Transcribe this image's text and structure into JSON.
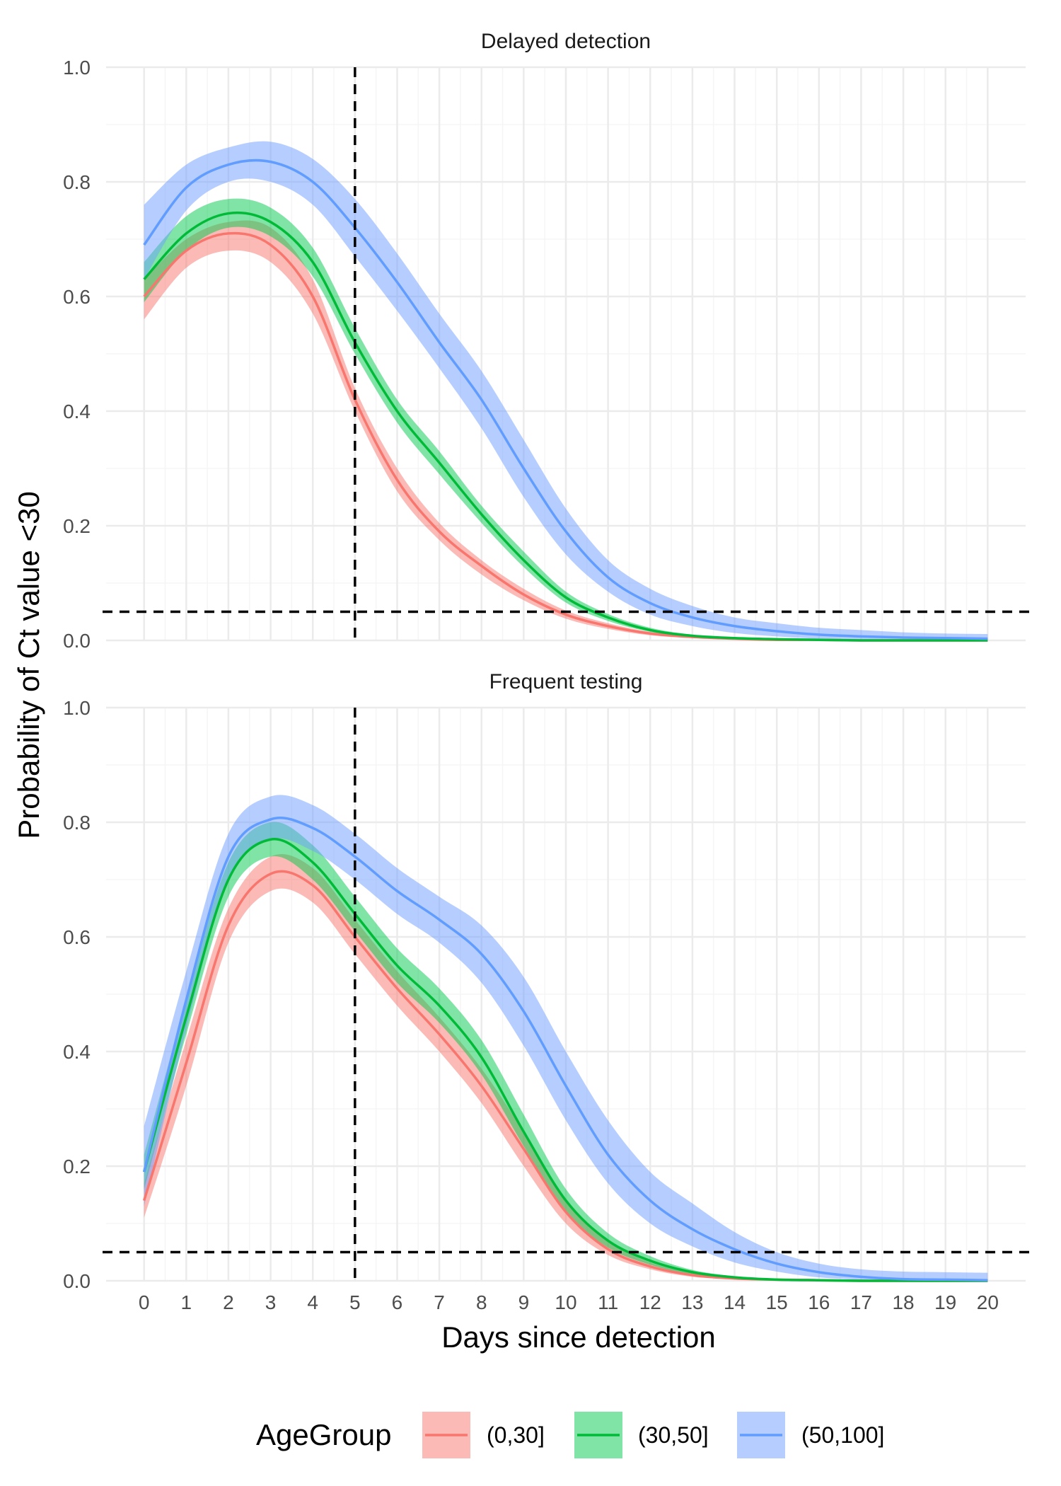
{
  "chart_data": {
    "type": "line",
    "facets": [
      {
        "title": "Delayed detection",
        "series": [
          {
            "name": "(0,30]",
            "x": [
              0,
              1,
              2,
              3,
              4,
              5,
              6,
              7,
              8,
              9,
              10,
              11,
              12,
              13,
              14,
              15,
              16,
              17,
              18,
              19,
              20
            ],
            "y": [
              0.6,
              0.68,
              0.71,
              0.69,
              0.6,
              0.42,
              0.28,
              0.19,
              0.13,
              0.08,
              0.045,
              0.025,
              0.012,
              0.006,
              0.003,
              0.001,
              0.001,
              0.0,
              0.0,
              0.0,
              0.0
            ],
            "lower": [
              0.56,
              0.65,
              0.68,
              0.66,
              0.57,
              0.4,
              0.26,
              0.175,
              0.115,
              0.07,
              0.038,
              0.02,
              0.009,
              0.004,
              0.002,
              0.0,
              0.0,
              0.0,
              0.0,
              0.0,
              0.0
            ],
            "upper": [
              0.63,
              0.7,
              0.73,
              0.72,
              0.63,
              0.44,
              0.3,
              0.205,
              0.14,
              0.09,
              0.052,
              0.03,
              0.015,
              0.008,
              0.004,
              0.002,
              0.001,
              0.001,
              0.0,
              0.0,
              0.0
            ]
          },
          {
            "name": "(30,50]",
            "x": [
              0,
              1,
              2,
              3,
              4,
              5,
              6,
              7,
              8,
              9,
              10,
              11,
              12,
              13,
              14,
              15,
              16,
              17,
              18,
              19,
              20
            ],
            "y": [
              0.63,
              0.71,
              0.745,
              0.73,
              0.66,
              0.52,
              0.4,
              0.31,
              0.22,
              0.14,
              0.075,
              0.04,
              0.018,
              0.008,
              0.004,
              0.002,
              0.001,
              0.0,
              0.0,
              0.0,
              0.0
            ],
            "lower": [
              0.59,
              0.68,
              0.72,
              0.705,
              0.635,
              0.5,
              0.38,
              0.29,
              0.205,
              0.128,
              0.066,
              0.034,
              0.015,
              0.006,
              0.003,
              0.001,
              0.0,
              0.0,
              0.0,
              0.0,
              0.0
            ],
            "upper": [
              0.66,
              0.74,
              0.77,
              0.755,
              0.685,
              0.545,
              0.42,
              0.33,
              0.235,
              0.155,
              0.085,
              0.046,
              0.022,
              0.01,
              0.005,
              0.003,
              0.001,
              0.001,
              0.0,
              0.0,
              0.0
            ]
          },
          {
            "name": "(50,100]",
            "x": [
              0,
              1,
              2,
              3,
              4,
              5,
              6,
              7,
              8,
              9,
              10,
              11,
              12,
              13,
              14,
              15,
              16,
              17,
              18,
              19,
              20
            ],
            "y": [
              0.69,
              0.79,
              0.83,
              0.835,
              0.8,
              0.72,
              0.625,
              0.52,
              0.42,
              0.3,
              0.19,
              0.11,
              0.065,
              0.04,
              0.025,
              0.016,
              0.01,
              0.007,
              0.005,
              0.004,
              0.003
            ],
            "lower": [
              0.63,
              0.75,
              0.8,
              0.8,
              0.76,
              0.67,
              0.575,
              0.475,
              0.37,
              0.25,
              0.15,
              0.085,
              0.045,
              0.025,
              0.013,
              0.007,
              0.003,
              0.002,
              0.001,
              0.0,
              0.0
            ],
            "upper": [
              0.76,
              0.83,
              0.86,
              0.87,
              0.84,
              0.77,
              0.675,
              0.57,
              0.47,
              0.35,
              0.23,
              0.14,
              0.09,
              0.06,
              0.04,
              0.03,
              0.022,
              0.018,
              0.014,
              0.012,
              0.011
            ]
          }
        ]
      },
      {
        "title": "Frequent testing",
        "series": [
          {
            "name": "(0,30]",
            "x": [
              0,
              1,
              2,
              3,
              4,
              5,
              6,
              7,
              8,
              9,
              10,
              11,
              12,
              13,
              14,
              15,
              16,
              17,
              18,
              19,
              20
            ],
            "y": [
              0.14,
              0.38,
              0.62,
              0.71,
              0.69,
              0.6,
              0.51,
              0.43,
              0.34,
              0.23,
              0.12,
              0.055,
              0.025,
              0.01,
              0.004,
              0.002,
              0.001,
              0.0,
              0.0,
              0.0,
              0.0
            ],
            "lower": [
              0.11,
              0.34,
              0.59,
              0.68,
              0.66,
              0.57,
              0.48,
              0.4,
              0.31,
              0.2,
              0.1,
              0.045,
              0.02,
              0.007,
              0.003,
              0.001,
              0.0,
              0.0,
              0.0,
              0.0,
              0.0
            ],
            "upper": [
              0.17,
              0.42,
              0.65,
              0.74,
              0.72,
              0.63,
              0.54,
              0.46,
              0.37,
              0.26,
              0.14,
              0.068,
              0.032,
              0.014,
              0.006,
              0.003,
              0.001,
              0.001,
              0.0,
              0.0,
              0.0
            ]
          },
          {
            "name": "(30,50]",
            "x": [
              0,
              1,
              2,
              3,
              4,
              5,
              6,
              7,
              8,
              9,
              10,
              11,
              12,
              13,
              14,
              15,
              16,
              17,
              18,
              19,
              20
            ],
            "y": [
              0.19,
              0.46,
              0.7,
              0.77,
              0.73,
              0.64,
              0.55,
              0.48,
              0.39,
              0.26,
              0.14,
              0.07,
              0.035,
              0.015,
              0.006,
              0.002,
              0.001,
              0.0,
              0.0,
              0.0,
              0.0
            ],
            "lower": [
              0.16,
              0.43,
              0.67,
              0.74,
              0.7,
              0.61,
              0.52,
              0.45,
              0.36,
              0.235,
              0.12,
              0.058,
              0.028,
              0.011,
              0.004,
              0.001,
              0.0,
              0.0,
              0.0,
              0.0,
              0.0
            ],
            "upper": [
              0.22,
              0.49,
              0.73,
              0.8,
              0.76,
              0.67,
              0.58,
              0.51,
              0.42,
              0.29,
              0.16,
              0.083,
              0.043,
              0.019,
              0.008,
              0.003,
              0.001,
              0.001,
              0.0,
              0.0,
              0.0
            ]
          },
          {
            "name": "(50,100]",
            "x": [
              0,
              1,
              2,
              3,
              4,
              5,
              6,
              7,
              8,
              9,
              10,
              11,
              12,
              13,
              14,
              15,
              16,
              17,
              18,
              19,
              20
            ],
            "y": [
              0.19,
              0.49,
              0.74,
              0.805,
              0.79,
              0.74,
              0.68,
              0.63,
              0.57,
              0.47,
              0.34,
              0.22,
              0.14,
              0.09,
              0.055,
              0.03,
              0.015,
              0.007,
              0.003,
              0.002,
              0.001
            ],
            "lower": [
              0.13,
              0.44,
              0.7,
              0.77,
              0.75,
              0.7,
              0.64,
              0.59,
              0.52,
              0.41,
              0.28,
              0.17,
              0.1,
              0.06,
              0.032,
              0.016,
              0.006,
              0.002,
              0.001,
              0.0,
              0.0
            ],
            "upper": [
              0.27,
              0.54,
              0.78,
              0.845,
              0.83,
              0.78,
              0.72,
              0.67,
              0.62,
              0.53,
              0.4,
              0.28,
              0.19,
              0.135,
              0.085,
              0.05,
              0.03,
              0.02,
              0.016,
              0.015,
              0.014
            ]
          }
        ]
      }
    ],
    "xlabel": "Days since detection",
    "ylabel": "Probability of Ct value <30",
    "xlim": [
      -0.9,
      20.9
    ],
    "ylim": [
      0,
      1
    ],
    "x_ticks": [
      "0",
      "1",
      "2",
      "3",
      "4",
      "5",
      "6",
      "7",
      "8",
      "9",
      "10",
      "11",
      "12",
      "13",
      "14",
      "15",
      "16",
      "17",
      "18",
      "19",
      "20"
    ],
    "y_ticks": [
      "0.0",
      "0.2",
      "0.4",
      "0.6",
      "0.8",
      "1.0"
    ],
    "reference_lines": {
      "vertical_x": 5,
      "horizontal_y": 0.05,
      "style": "dashed"
    },
    "grid": true,
    "legend": {
      "title": "AgeGroup",
      "position": "bottom",
      "entries": [
        "(0,30]",
        "(30,50]",
        "(50,100]"
      ]
    }
  },
  "colors": {
    "series_lines": [
      "#F8766D",
      "#00BA38",
      "#619CFF"
    ],
    "series_fills": [
      "#F8766D",
      "#00C94C",
      "#6E9EFF"
    ],
    "grid_major": "#EBEBEB",
    "grid_minor": "#F5F5F5",
    "reference_line": "#000000"
  }
}
